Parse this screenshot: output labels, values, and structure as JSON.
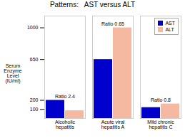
{
  "chart_data": {
    "type": "bar",
    "title": "Patterns:   AST versus ALT",
    "categories": [
      "Alcoholic\nhepatitis",
      "Acute viral\nhepatitis A",
      "Mild chronic\nhepatitis C"
    ],
    "series": [
      {
        "name": "AST",
        "color": "#0000cc",
        "values": [
          200,
          650,
          120
        ]
      },
      {
        "name": "ALT",
        "color": "#f5b8a0",
        "values": [
          85,
          1000,
          160
        ]
      }
    ],
    "annotations": [
      "Ratio 2.4",
      "Ratio 0.65",
      "Ratio 0.8"
    ],
    "ylabel": "Serum\nEnzyme\nLevel\n(IU/ml)",
    "ylim": [
      0,
      1130
    ],
    "yticks": [
      100,
      200,
      650,
      1000
    ],
    "legend": "upper right",
    "grid": false
  }
}
